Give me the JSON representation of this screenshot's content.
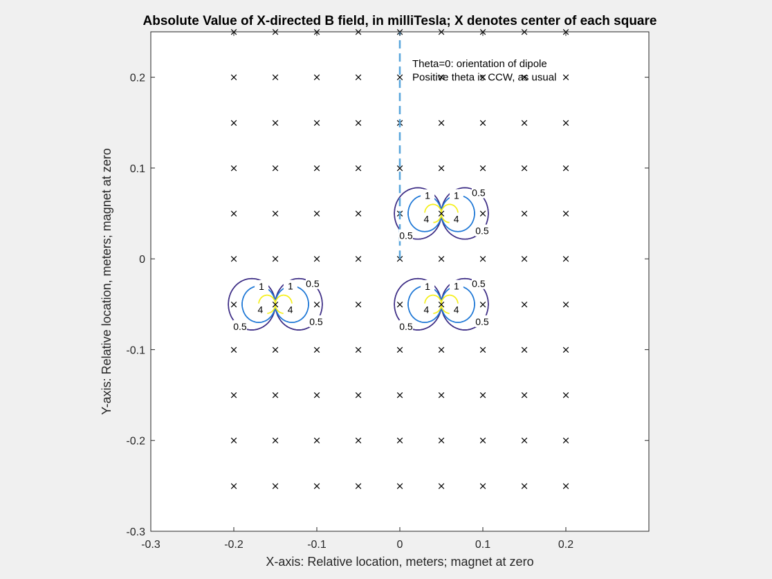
{
  "chart_data": {
    "type": "contour",
    "title": "Absolute Value of X-directed B field, in milliTesla;  X denotes center of each square",
    "xlabel": "X-axis: Relative location, meters;  magnet at zero",
    "ylabel": "Y-axis: Relative location, meters;  magnet at zero",
    "xlim": [
      -0.3,
      0.3
    ],
    "ylim": [
      -0.3,
      0.25
    ],
    "xticks": [
      -0.3,
      -0.2,
      -0.1,
      0,
      0.1,
      0.2
    ],
    "yticks": [
      -0.3,
      -0.2,
      -0.1,
      0,
      0.1,
      0.2
    ],
    "xtick_labels": [
      "-0.3",
      "-0.2",
      "-0.1",
      "0",
      "0.1",
      "0.2"
    ],
    "ytick_labels": [
      "-0.3",
      "-0.2",
      "-0.1",
      "0",
      "0.1",
      "0.2"
    ],
    "marker_symbol": "×",
    "marker_x": [
      -0.2,
      -0.15,
      -0.1,
      -0.05,
      0,
      0.05,
      0.1,
      0.15,
      0.2
    ],
    "marker_y": [
      0.25,
      0.2,
      0.15,
      0.1,
      0.05,
      0,
      -0.05,
      -0.1,
      -0.15,
      -0.2,
      -0.25
    ],
    "contour_levels": [
      {
        "level": 0.5,
        "label": "0.5",
        "color": "#3d2d85"
      },
      {
        "level": 1,
        "label": "1",
        "color": "#1f78d6"
      },
      {
        "level": 4,
        "label": "4",
        "color": "#f5f01e"
      }
    ],
    "dipoles": [
      {
        "x": -0.15,
        "y": -0.05
      },
      {
        "x": 0.05,
        "y": 0.05
      },
      {
        "x": 0.05,
        "y": -0.05
      }
    ],
    "orientation_line": {
      "x": 0,
      "y_from": 0,
      "y_to": 0.25,
      "color": "#5aa6dc"
    },
    "annotations": [
      {
        "text": "Theta=0: orientation of dipole",
        "x": 0.015,
        "y": 0.215
      },
      {
        "text": "Positive theta is CCW, as usual",
        "x": 0.015,
        "y": 0.2
      }
    ],
    "grid": false
  }
}
